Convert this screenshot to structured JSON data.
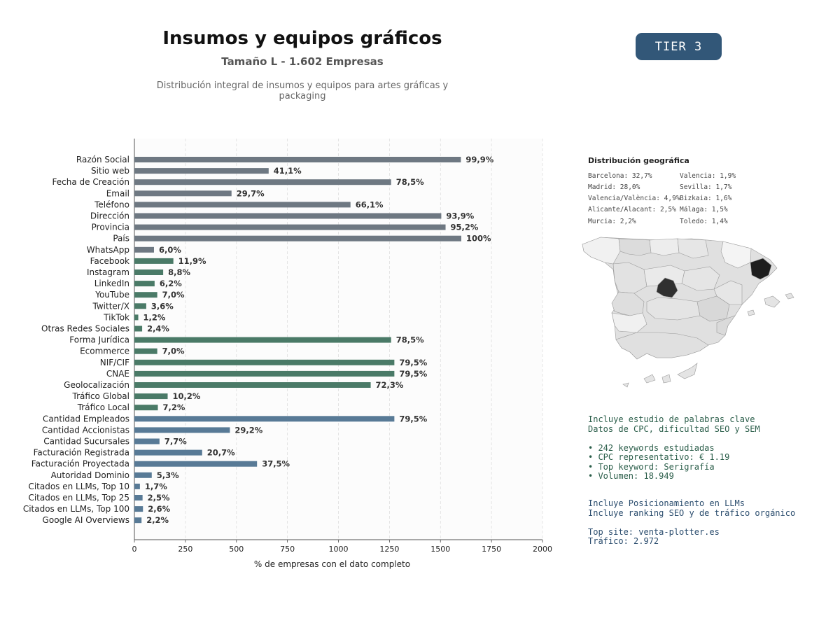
{
  "header": {
    "title": "Insumos y equipos gráficos",
    "subtitle": "Tamaño L - 1.602 Empresas",
    "description": "Distribución integral de insumos y equipos para artes gráficas y packaging",
    "tier": "TIER 3"
  },
  "chart_data": {
    "type": "bar",
    "orientation": "horizontal",
    "xlabel": "% de empresas con el dato completo",
    "xlim": [
      0,
      2000
    ],
    "xticks": [
      0,
      250,
      500,
      750,
      1000,
      1250,
      1500,
      1750,
      2000
    ],
    "grid": "vertical dashed",
    "categories": [
      "Razón Social",
      "Sitio web",
      "Fecha de Creación",
      "Email",
      "Teléfono",
      "Dirección",
      "Provincia",
      "País",
      "WhatsApp",
      "Facebook",
      "Instagram",
      "LinkedIn",
      "YouTube",
      "Twitter/X",
      "TikTok",
      "Otras Redes Sociales",
      "Forma Jurídica",
      "Ecommerce",
      "NIF/CIF",
      "CNAE",
      "Geolocalización",
      "Tráfico Global",
      "Tráfico Local",
      "Cantidad Empleados",
      "Cantidad Accionistas",
      "Cantidad Sucursales",
      "Facturación Registrada",
      "Facturación Proyectada",
      "Autoridad Dominio",
      "Citados en LLMs, Top 10",
      "Citados en LLMs, Top 25",
      "Citados en LLMs, Top 100",
      "Google AI Overviews"
    ],
    "values": [
      1600,
      658,
      1258,
      476,
      1059,
      1504,
      1525,
      1602,
      96,
      191,
      141,
      99,
      112,
      58,
      19,
      38,
      1258,
      112,
      1274,
      1274,
      1158,
      163,
      115,
      1274,
      468,
      123,
      332,
      601,
      85,
      27,
      40,
      42,
      35
    ],
    "labels": [
      "99,9%",
      "41,1%",
      "78,5%",
      "29,7%",
      "66,1%",
      "93,9%",
      "95,2%",
      "100%",
      "6,0%",
      "11,9%",
      "8,8%",
      "6,2%",
      "7,0%",
      "3,6%",
      "1,2%",
      "2,4%",
      "78,5%",
      "7,0%",
      "79,5%",
      "79,5%",
      "72,3%",
      "10,2%",
      "7,2%",
      "79,5%",
      "29,2%",
      "7,7%",
      "20,7%",
      "37,5%",
      "5,3%",
      "1,7%",
      "2,5%",
      "2,6%",
      "2,2%"
    ],
    "groups": [
      "contact",
      "contact",
      "contact",
      "contact",
      "contact",
      "contact",
      "contact",
      "contact",
      "contact",
      "digital",
      "digital",
      "digital",
      "digital",
      "digital",
      "digital",
      "digital",
      "digital",
      "digital",
      "digital",
      "digital",
      "digital",
      "digital",
      "digital",
      "business",
      "business",
      "business",
      "business",
      "business",
      "business",
      "business",
      "business",
      "business",
      "business"
    ],
    "colors": {
      "contact": "#6e7882",
      "digital": "#4a7a67",
      "business": "#587a96"
    }
  },
  "geo": {
    "title": "Distribución geográfica",
    "items": [
      "Barcelona: 32,7%",
      "Madrid: 28,0%",
      "Valencia/València: 4,9%",
      "Alicante/Alacant: 2,5%",
      "Murcia: 2,2%",
      "Valencia: 1,9%",
      "Sevilla: 1,7%",
      "Bizkaia: 1,6%",
      "Málaga: 1,5%",
      "Toledo: 1,4%"
    ]
  },
  "seo": {
    "lines": [
      "Incluye estudio de palabras clave",
      "Datos de CPC, dificultad SEO y SEM",
      "",
      "• 242 keywords estudiadas",
      "• CPC representativo: € 1.19",
      "• Top keyword: Serigrafía",
      "• Volumen: 18.949"
    ]
  },
  "llm": {
    "lines": [
      "Incluye Posicionamiento en LLMs",
      "Incluye ranking SEO y de tráfico orgánico",
      "",
      "Top site: venta-plotter.es",
      "Tráfico: 2.972"
    ]
  }
}
